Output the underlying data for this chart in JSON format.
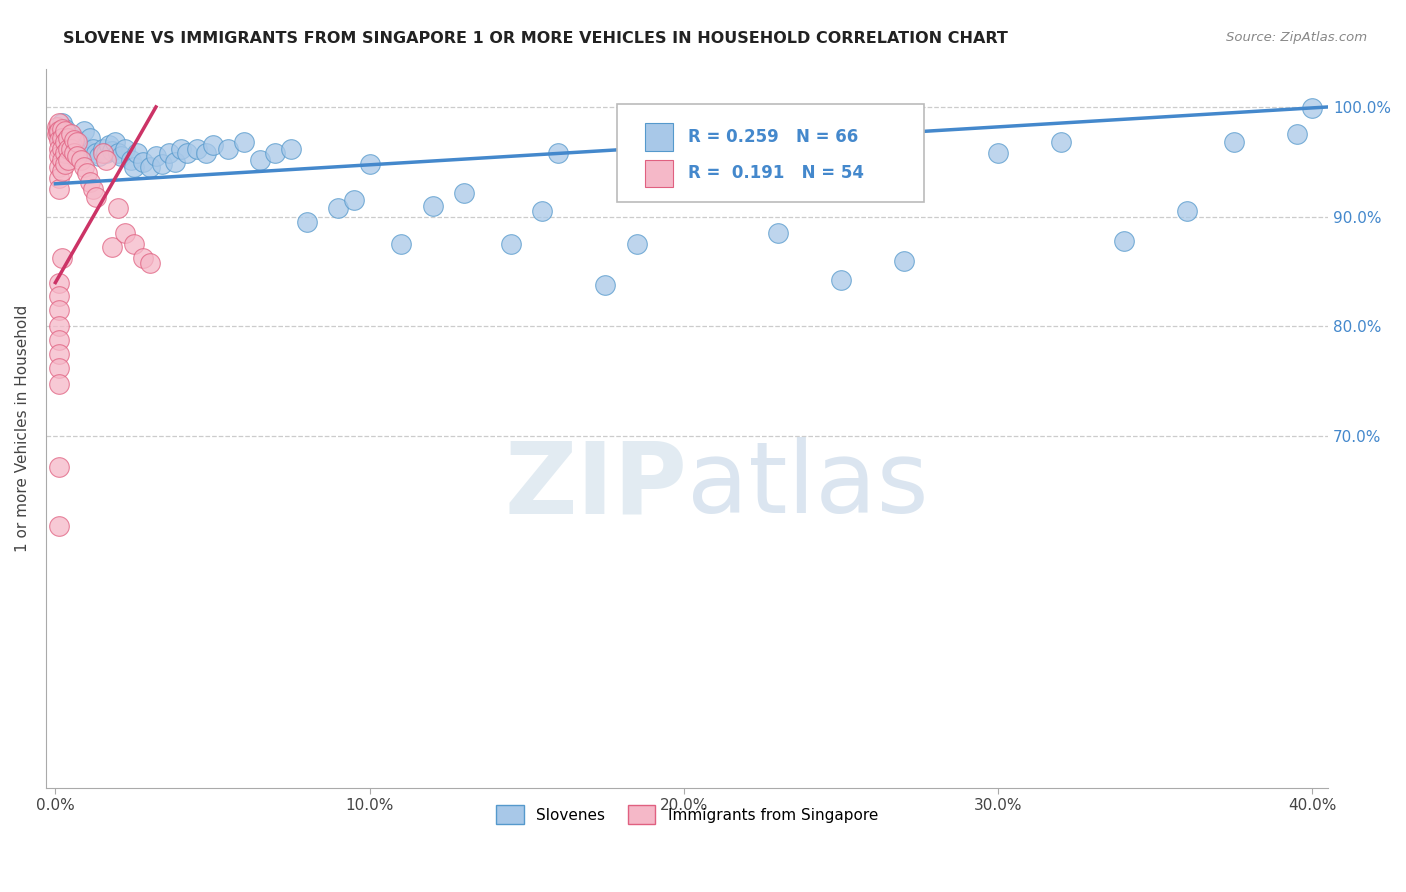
{
  "title": "SLOVENE VS IMMIGRANTS FROM SINGAPORE 1 OR MORE VEHICLES IN HOUSEHOLD CORRELATION CHART",
  "source": "Source: ZipAtlas.com",
  "ylabel": "1 or more Vehicles in Household",
  "xlim": [
    -0.003,
    0.405
  ],
  "ylim": [
    0.38,
    1.035
  ],
  "xtick_vals": [
    0.0,
    0.1,
    0.2,
    0.3,
    0.4
  ],
  "xtick_labels": [
    "0.0%",
    "10.0%",
    "20.0%",
    "30.0%",
    "40.0%"
  ],
  "ytick_vals": [
    0.7,
    0.8,
    0.9,
    1.0
  ],
  "ytick_labels": [
    "70.0%",
    "80.0%",
    "90.0%",
    "100.0%"
  ],
  "grid_yticks": [
    0.7,
    0.8,
    0.9,
    1.0
  ],
  "blue_R": 0.259,
  "blue_N": 66,
  "pink_R": 0.191,
  "pink_N": 54,
  "blue_color": "#a8c8e8",
  "blue_edge_color": "#5599cc",
  "blue_line_color": "#4488cc",
  "pink_color": "#f5b8c8",
  "pink_edge_color": "#e06080",
  "pink_line_color": "#cc3366",
  "legend_label_blue": "Slovenes",
  "legend_label_pink": "Immigrants from Singapore",
  "blue_scatter_x": [
    0.001,
    0.002,
    0.003,
    0.003,
    0.004,
    0.005,
    0.006,
    0.007,
    0.008,
    0.009,
    0.01,
    0.011,
    0.012,
    0.013,
    0.014,
    0.015,
    0.016,
    0.017,
    0.018,
    0.019,
    0.02,
    0.021,
    0.022,
    0.024,
    0.025,
    0.026,
    0.028,
    0.03,
    0.032,
    0.034,
    0.036,
    0.038,
    0.04,
    0.042,
    0.045,
    0.048,
    0.05,
    0.055,
    0.06,
    0.065,
    0.07,
    0.075,
    0.08,
    0.09,
    0.095,
    0.1,
    0.11,
    0.12,
    0.13,
    0.145,
    0.155,
    0.16,
    0.175,
    0.185,
    0.2,
    0.215,
    0.23,
    0.25,
    0.27,
    0.3,
    0.32,
    0.34,
    0.36,
    0.375,
    0.395,
    0.4
  ],
  "blue_scatter_y": [
    0.975,
    0.985,
    0.98,
    0.97,
    0.975,
    0.968,
    0.972,
    0.968,
    0.965,
    0.978,
    0.96,
    0.972,
    0.962,
    0.958,
    0.955,
    0.962,
    0.958,
    0.965,
    0.96,
    0.968,
    0.958,
    0.955,
    0.962,
    0.952,
    0.945,
    0.958,
    0.95,
    0.945,
    0.955,
    0.948,
    0.958,
    0.95,
    0.962,
    0.958,
    0.962,
    0.958,
    0.965,
    0.962,
    0.968,
    0.952,
    0.958,
    0.962,
    0.895,
    0.908,
    0.915,
    0.948,
    0.875,
    0.91,
    0.922,
    0.875,
    0.905,
    0.958,
    0.838,
    0.875,
    0.962,
    0.978,
    0.885,
    0.842,
    0.86,
    0.958,
    0.968,
    0.878,
    0.905,
    0.968,
    0.975,
    0.999
  ],
  "pink_scatter_x": [
    0.0005,
    0.0005,
    0.0008,
    0.001,
    0.001,
    0.001,
    0.001,
    0.001,
    0.001,
    0.001,
    0.001,
    0.002,
    0.002,
    0.002,
    0.002,
    0.002,
    0.002,
    0.003,
    0.003,
    0.003,
    0.003,
    0.004,
    0.004,
    0.004,
    0.005,
    0.005,
    0.006,
    0.006,
    0.007,
    0.007,
    0.008,
    0.009,
    0.01,
    0.011,
    0.012,
    0.013,
    0.015,
    0.016,
    0.018,
    0.02,
    0.022,
    0.025,
    0.028,
    0.03,
    0.001,
    0.001,
    0.001,
    0.001,
    0.001,
    0.001,
    0.001,
    0.001,
    0.001,
    0.001
  ],
  "pink_scatter_y": [
    0.982,
    0.975,
    0.978,
    0.985,
    0.978,
    0.97,
    0.962,
    0.955,
    0.945,
    0.935,
    0.925,
    0.98,
    0.972,
    0.962,
    0.952,
    0.942,
    0.862,
    0.978,
    0.968,
    0.958,
    0.948,
    0.972,
    0.962,
    0.952,
    0.975,
    0.962,
    0.97,
    0.958,
    0.968,
    0.955,
    0.952,
    0.945,
    0.94,
    0.932,
    0.925,
    0.918,
    0.958,
    0.952,
    0.872,
    0.908,
    0.885,
    0.875,
    0.862,
    0.858,
    0.84,
    0.828,
    0.815,
    0.8,
    0.788,
    0.775,
    0.762,
    0.748,
    0.672,
    0.618
  ],
  "blue_trend_x": [
    0.0,
    0.405
  ],
  "blue_trend_y": [
    0.93,
    1.0
  ],
  "pink_trend_x": [
    0.0,
    0.032
  ],
  "pink_trend_y": [
    0.84,
    1.0
  ]
}
